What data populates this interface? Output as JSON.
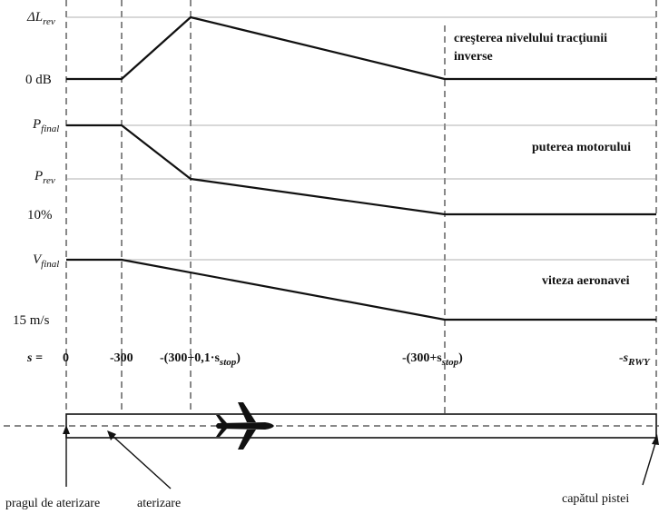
{
  "panels": {
    "reverse_level": {
      "title_line1": "creşterea nivelului tracţiunii",
      "title_line2": "inverse",
      "y_top_main": "ΔL",
      "y_top_sub": "rev",
      "y_bottom": "0 dB"
    },
    "engine_power": {
      "title": "puterea motorului",
      "y_top_main": "P",
      "y_top_sub": "final",
      "y_mid_main": "P",
      "y_mid_sub": "rev",
      "y_bottom": "10%"
    },
    "aircraft_speed": {
      "title": "viteza aeronavei",
      "y_top_main": "V",
      "y_top_sub": "final",
      "y_bottom": "15 m/s"
    }
  },
  "distance_axis": {
    "label": "s =",
    "ticks": [
      {
        "main": "0",
        "sub": "",
        "tail": ""
      },
      {
        "main": "-300",
        "sub": "",
        "tail": ""
      },
      {
        "main": "-(300+0,1·s",
        "sub": "stop",
        "tail": ")"
      },
      {
        "main": "-(300+s",
        "sub": "stop",
        "tail": ")"
      },
      {
        "main": "-s",
        "sub": "RWY",
        "tail": ""
      }
    ]
  },
  "runway": {
    "labels": {
      "threshold": "pragul de aterizare",
      "landing": "aterizare",
      "runway_end": "capătul pistei"
    }
  }
}
